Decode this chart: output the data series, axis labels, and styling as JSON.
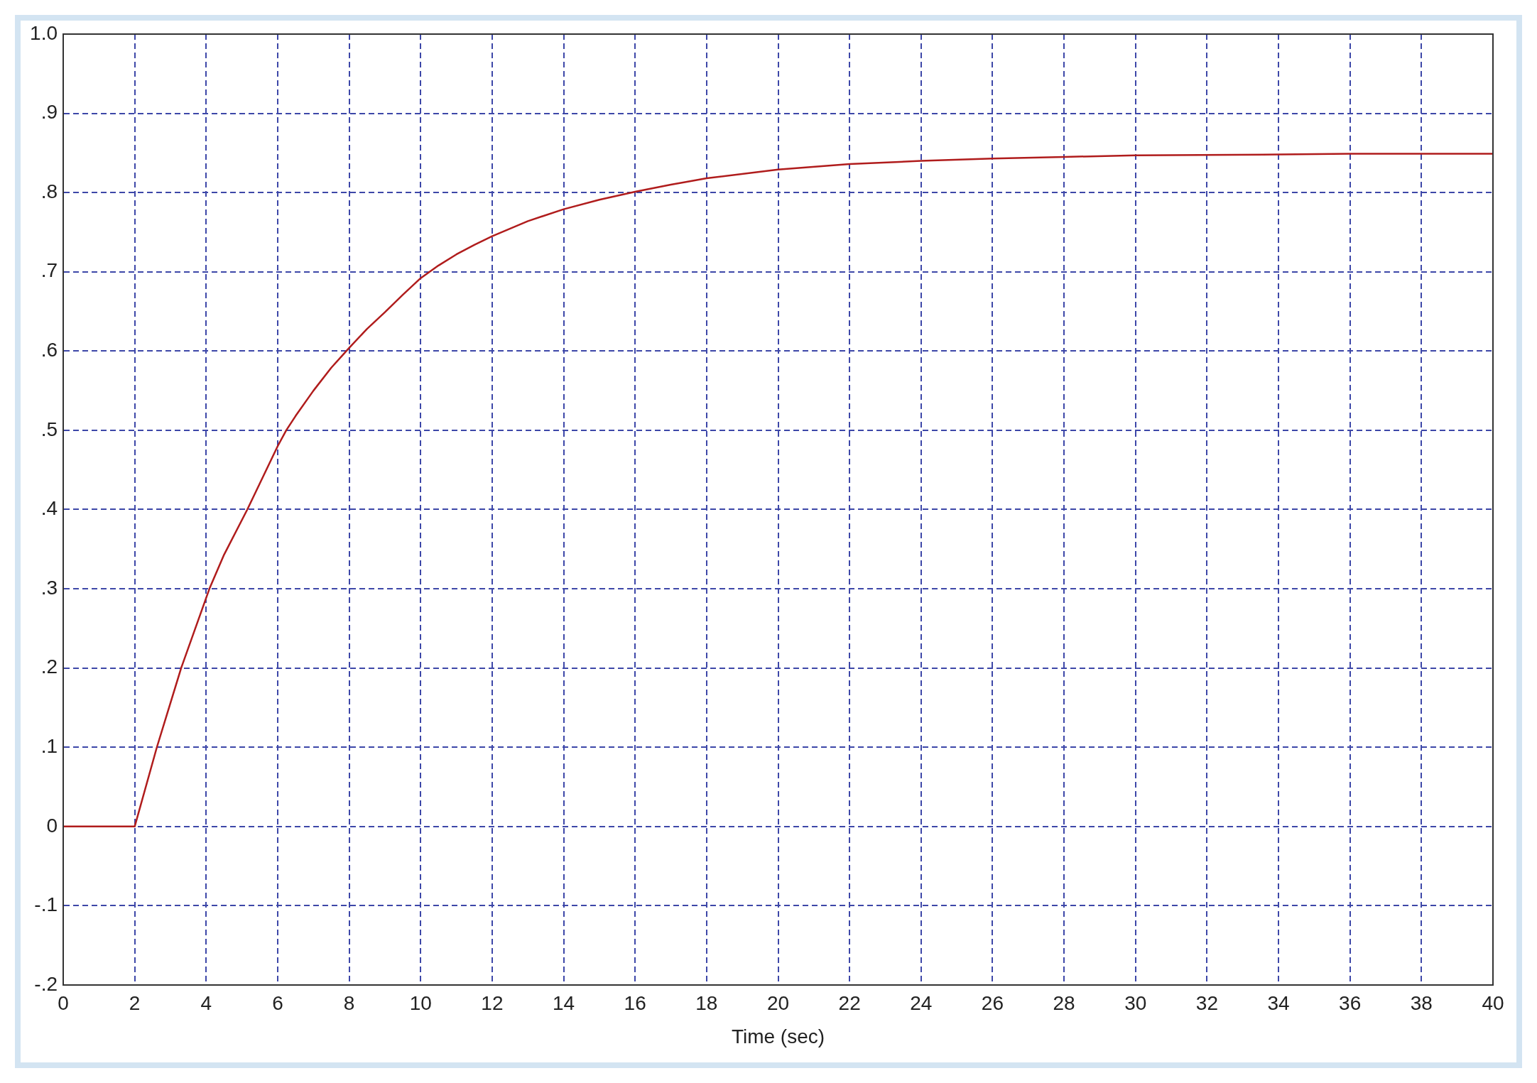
{
  "chart_data": {
    "type": "line",
    "xlabel": "Time (sec)",
    "x": [
      0,
      2,
      2.62,
      3.3,
      4.09,
      4.5,
      5.15,
      5.5,
      6,
      6.24,
      6.5,
      7,
      7.5,
      8,
      8.5,
      9,
      9.5,
      10,
      10.5,
      11,
      11.5,
      12,
      13,
      14,
      15,
      16,
      17,
      18,
      20,
      22,
      24,
      26,
      28,
      30,
      34,
      36,
      40
    ],
    "values": [
      0,
      0,
      0.1,
      0.2,
      0.3,
      0.343,
      0.4,
      0.433,
      0.48,
      0.5,
      0.518,
      0.55,
      0.579,
      0.604,
      0.628,
      0.649,
      0.671,
      0.692,
      0.708,
      0.722,
      0.734,
      0.745,
      0.764,
      0.779,
      0.791,
      0.801,
      0.81,
      0.818,
      0.829,
      0.836,
      0.84,
      0.843,
      0.845,
      0.847,
      0.848,
      0.849,
      0.849
    ],
    "color": "#b01c1c",
    "xlim": [
      0,
      40
    ],
    "xticks": [
      0,
      2,
      4,
      6,
      8,
      10,
      12,
      14,
      16,
      18,
      20,
      22,
      24,
      26,
      28,
      30,
      32,
      34,
      36,
      38,
      40
    ],
    "ylim": [
      -0.2,
      1
    ],
    "yticks": [
      {
        "value": -0.2,
        "label": "-.2"
      },
      {
        "value": -0.1,
        "label": "-.1"
      },
      0,
      {
        "value": 0.1,
        "label": ".1"
      },
      {
        "value": 0.2,
        "label": ".2"
      },
      {
        "value": 0.3,
        "label": ".3"
      },
      {
        "value": 0.4,
        "label": ".4"
      },
      {
        "value": 0.5,
        "label": ".5"
      },
      {
        "value": 0.6,
        "label": ".6"
      },
      {
        "value": 0.7,
        "label": ".7"
      },
      {
        "value": 0.8,
        "label": ".8"
      },
      {
        "value": 0.9,
        "label": ".9"
      },
      {
        "value": 1,
        "label": "1.0"
      }
    ],
    "grid": true
  }
}
